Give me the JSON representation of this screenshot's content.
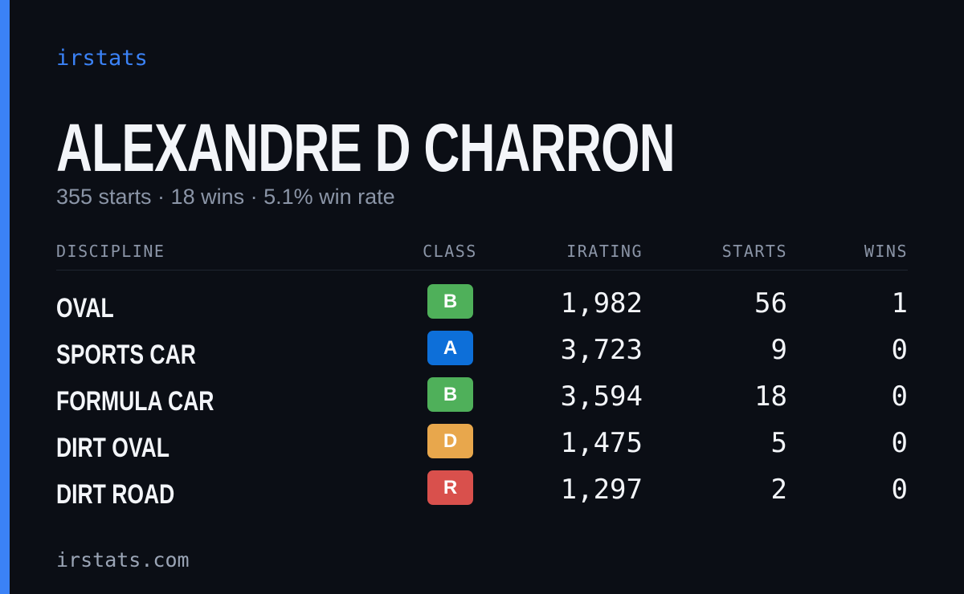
{
  "brand": "irstats",
  "driver": {
    "name": "ALEXANDRE D CHARRON",
    "summary": "355 starts · 18 wins · 5.1% win rate"
  },
  "table": {
    "headers": [
      "DISCIPLINE",
      "CLASS",
      "IRATING",
      "STARTS",
      "WINS"
    ],
    "rows": [
      {
        "discipline": "OVAL",
        "class": "B",
        "class_color": "#4fb05a",
        "irating": "1,982",
        "starts": "56",
        "wins": "1"
      },
      {
        "discipline": "SPORTS CAR",
        "class": "A",
        "class_color": "#0d6fd9",
        "irating": "3,723",
        "starts": "9",
        "wins": "0"
      },
      {
        "discipline": "FORMULA CAR",
        "class": "B",
        "class_color": "#4fb05a",
        "irating": "3,594",
        "starts": "18",
        "wins": "0"
      },
      {
        "discipline": "DIRT OVAL",
        "class": "D",
        "class_color": "#e8a74c",
        "irating": "1,475",
        "starts": "5",
        "wins": "0"
      },
      {
        "discipline": "DIRT ROAD",
        "class": "R",
        "class_color": "#d9504c",
        "irating": "1,297",
        "starts": "2",
        "wins": "0"
      }
    ]
  },
  "footer": "irstats.com"
}
